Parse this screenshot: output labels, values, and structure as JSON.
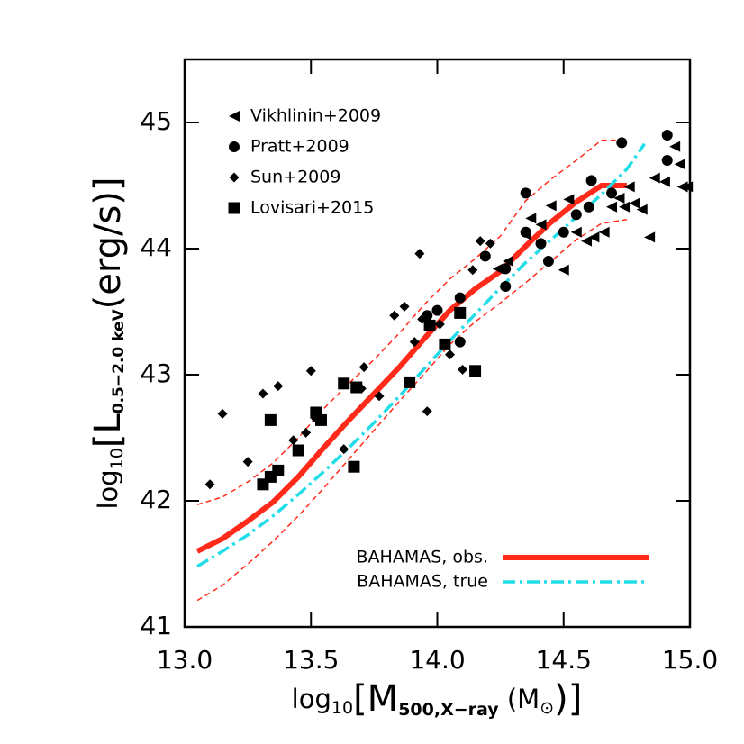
{
  "chart_data": {
    "type": "scatter",
    "x_label": {
      "parts": [
        "log",
        "10",
        "[M",
        "500,X−ray",
        " (M",
        "⊙",
        ")]"
      ]
    },
    "y_label": {
      "parts": [
        "log",
        "10",
        "[L",
        "0.5−2.0 keV",
        "(erg/s)]"
      ]
    },
    "xlim": [
      13,
      15
    ],
    "ylim": [
      41,
      45.5
    ],
    "xticks": [
      {
        "value": 13,
        "label": "13.0"
      },
      {
        "value": 13.5,
        "label": "13.5"
      },
      {
        "value": 14,
        "label": "14.0"
      },
      {
        "value": 14.5,
        "label": "14.5"
      },
      {
        "value": 15,
        "label": "15.0"
      }
    ],
    "yticks": [
      41,
      42,
      43,
      44,
      45
    ],
    "series": [
      {
        "name": "Vikhlinin+2009",
        "color": "#000000",
        "marker": "triangle-left",
        "x": [
          14.37,
          14.41,
          14.45,
          14.5,
          14.55,
          14.59,
          14.62,
          14.66,
          14.69,
          14.72,
          14.76,
          14.78,
          14.81,
          14.84,
          14.86,
          14.9,
          14.94,
          14.96,
          14.97,
          14.99,
          14.24,
          14.28,
          14.35,
          14.52,
          14.74
        ],
        "values": [
          44.24,
          44.19,
          44.34,
          43.83,
          44.13,
          44.06,
          44.09,
          44.13,
          44.33,
          44.4,
          44.49,
          44.36,
          44.31,
          44.09,
          44.56,
          44.53,
          44.81,
          44.67,
          44.49,
          44.49,
          43.84,
          43.9,
          44.11,
          44.39,
          44.33
        ]
      },
      {
        "name": "Pratt+2009",
        "color": "#000000",
        "marker": "circle",
        "x": [
          13.52,
          13.96,
          14.0,
          14.09,
          14.19,
          14.27,
          14.35,
          14.35,
          14.41,
          14.44,
          14.5,
          14.55,
          14.6,
          14.61,
          14.69,
          14.73,
          14.91,
          14.91,
          14.09,
          14.27
        ],
        "values": [
          42.67,
          43.47,
          43.51,
          43.61,
          43.94,
          43.7,
          44.44,
          44.13,
          44.04,
          43.9,
          44.13,
          44.27,
          44.33,
          44.54,
          44.44,
          44.84,
          44.7,
          44.9,
          43.26,
          43.84
        ]
      },
      {
        "name": "Sun+2009",
        "color": "#000000",
        "marker": "diamond",
        "x": [
          13.1,
          13.15,
          13.25,
          13.31,
          13.37,
          13.43,
          13.5,
          13.48,
          13.7,
          13.71,
          13.77,
          13.83,
          13.87,
          13.91,
          13.93,
          13.94,
          13.96,
          14.01,
          14.05,
          14.1,
          14.14,
          14.17,
          14.21,
          13.63
        ],
        "values": [
          42.13,
          42.69,
          42.31,
          42.85,
          42.91,
          42.48,
          43.03,
          42.54,
          42.89,
          43.06,
          42.83,
          43.47,
          43.54,
          43.26,
          43.96,
          43.44,
          42.71,
          43.4,
          43.16,
          43.04,
          43.83,
          44.06,
          44.04,
          42.41
        ]
      },
      {
        "name": "Lovisari+2015",
        "color": "#000000",
        "marker": "square",
        "x": [
          13.31,
          13.34,
          13.37,
          13.34,
          13.52,
          13.54,
          13.63,
          13.68,
          13.67,
          13.89,
          13.97,
          14.03,
          14.09,
          14.15,
          13.45
        ],
        "values": [
          42.13,
          42.19,
          42.24,
          42.64,
          42.7,
          42.64,
          42.93,
          42.9,
          42.27,
          42.94,
          43.39,
          43.24,
          43.49,
          43.03,
          42.4
        ]
      }
    ],
    "lines": [
      {
        "name": "BAHAMAS, obs.",
        "color": "#ff2a1a",
        "style": "solid",
        "x": [
          13.05,
          13.15,
          13.25,
          13.35,
          13.45,
          13.55,
          13.65,
          13.75,
          13.85,
          13.95,
          14.05,
          14.15,
          14.25,
          14.35,
          14.45,
          14.55,
          14.65,
          14.75
        ],
        "values": [
          41.6,
          41.7,
          41.84,
          41.99,
          42.19,
          42.42,
          42.64,
          42.85,
          43.06,
          43.29,
          43.51,
          43.68,
          43.82,
          44.02,
          44.21,
          44.37,
          44.5,
          44.5
        ]
      },
      {
        "name": "BAHAMAS, true",
        "color": "#22dde8",
        "style": "dashdot",
        "x": [
          13.05,
          13.15,
          13.25,
          13.35,
          13.45,
          13.55,
          13.65,
          13.75,
          13.85,
          13.95,
          14.05,
          14.15,
          14.25,
          14.35,
          14.45,
          14.55,
          14.65,
          14.75,
          14.82
        ],
        "values": [
          41.48,
          41.6,
          41.73,
          41.88,
          42.05,
          42.23,
          42.42,
          42.62,
          42.83,
          43.05,
          43.27,
          43.48,
          43.69,
          43.89,
          44.07,
          44.25,
          44.43,
          44.63,
          44.83
        ]
      }
    ],
    "bands": [
      {
        "color": "#ff2a1a",
        "x": [
          13.05,
          13.15,
          13.25,
          13.35,
          13.45,
          13.55,
          13.65,
          13.75,
          13.85,
          13.95,
          14.05,
          14.15,
          14.25,
          14.35,
          14.45,
          14.55,
          14.65,
          14.75
        ],
        "values": [
          41.97,
          42.03,
          42.15,
          42.3,
          42.5,
          42.73,
          42.93,
          43.12,
          43.33,
          43.56,
          43.76,
          43.92,
          44.1,
          44.38,
          44.55,
          44.7,
          44.86,
          44.86
        ]
      },
      {
        "color": "#ff2a1a",
        "x": [
          13.05,
          13.15,
          13.25,
          13.35,
          13.45,
          13.55,
          13.65,
          13.75,
          13.85,
          13.95,
          14.05,
          14.15,
          14.25,
          14.35,
          14.45,
          14.55,
          14.65,
          14.75
        ],
        "values": [
          41.21,
          41.33,
          41.5,
          41.68,
          41.88,
          42.1,
          42.33,
          42.56,
          42.79,
          43.01,
          43.24,
          43.42,
          43.57,
          43.73,
          43.9,
          44.07,
          44.2,
          44.23
        ]
      }
    ]
  }
}
